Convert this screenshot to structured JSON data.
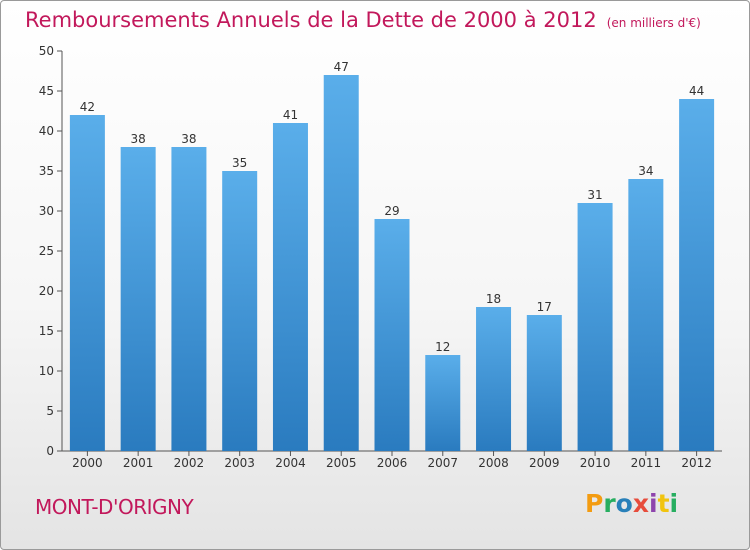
{
  "header": {
    "title": "Remboursements Annuels de la Dette de 2000 à 2012",
    "unit": "(en milliers d'€)"
  },
  "footer": {
    "commune": "MONT-D'ORIGNY",
    "logo": "Proxiti"
  },
  "colors": {
    "title": "#c2185b",
    "bar_top": "#5aaeea",
    "bar_bottom": "#2a7bbf",
    "logo_letters": [
      "#f39c12",
      "#27ae60",
      "#2980b9",
      "#e74c3c",
      "#8e44ad",
      "#f1c40f",
      "#27ae60"
    ]
  },
  "chart_data": {
    "type": "bar",
    "title": "Remboursements Annuels de la Dette de 2000 à 2012",
    "ylabel": "",
    "xlabel": "",
    "categories": [
      "2000",
      "2001",
      "2002",
      "2003",
      "2004",
      "2005",
      "2006",
      "2007",
      "2008",
      "2009",
      "2010",
      "2011",
      "2012"
    ],
    "values": [
      42,
      38,
      38,
      35,
      41,
      47,
      29,
      12,
      18,
      17,
      31,
      34,
      44
    ],
    "ylim": [
      0,
      50
    ],
    "yticks": [
      0,
      5,
      10,
      15,
      20,
      25,
      30,
      35,
      40,
      45,
      50
    ],
    "grid": false,
    "data_labels": true
  }
}
